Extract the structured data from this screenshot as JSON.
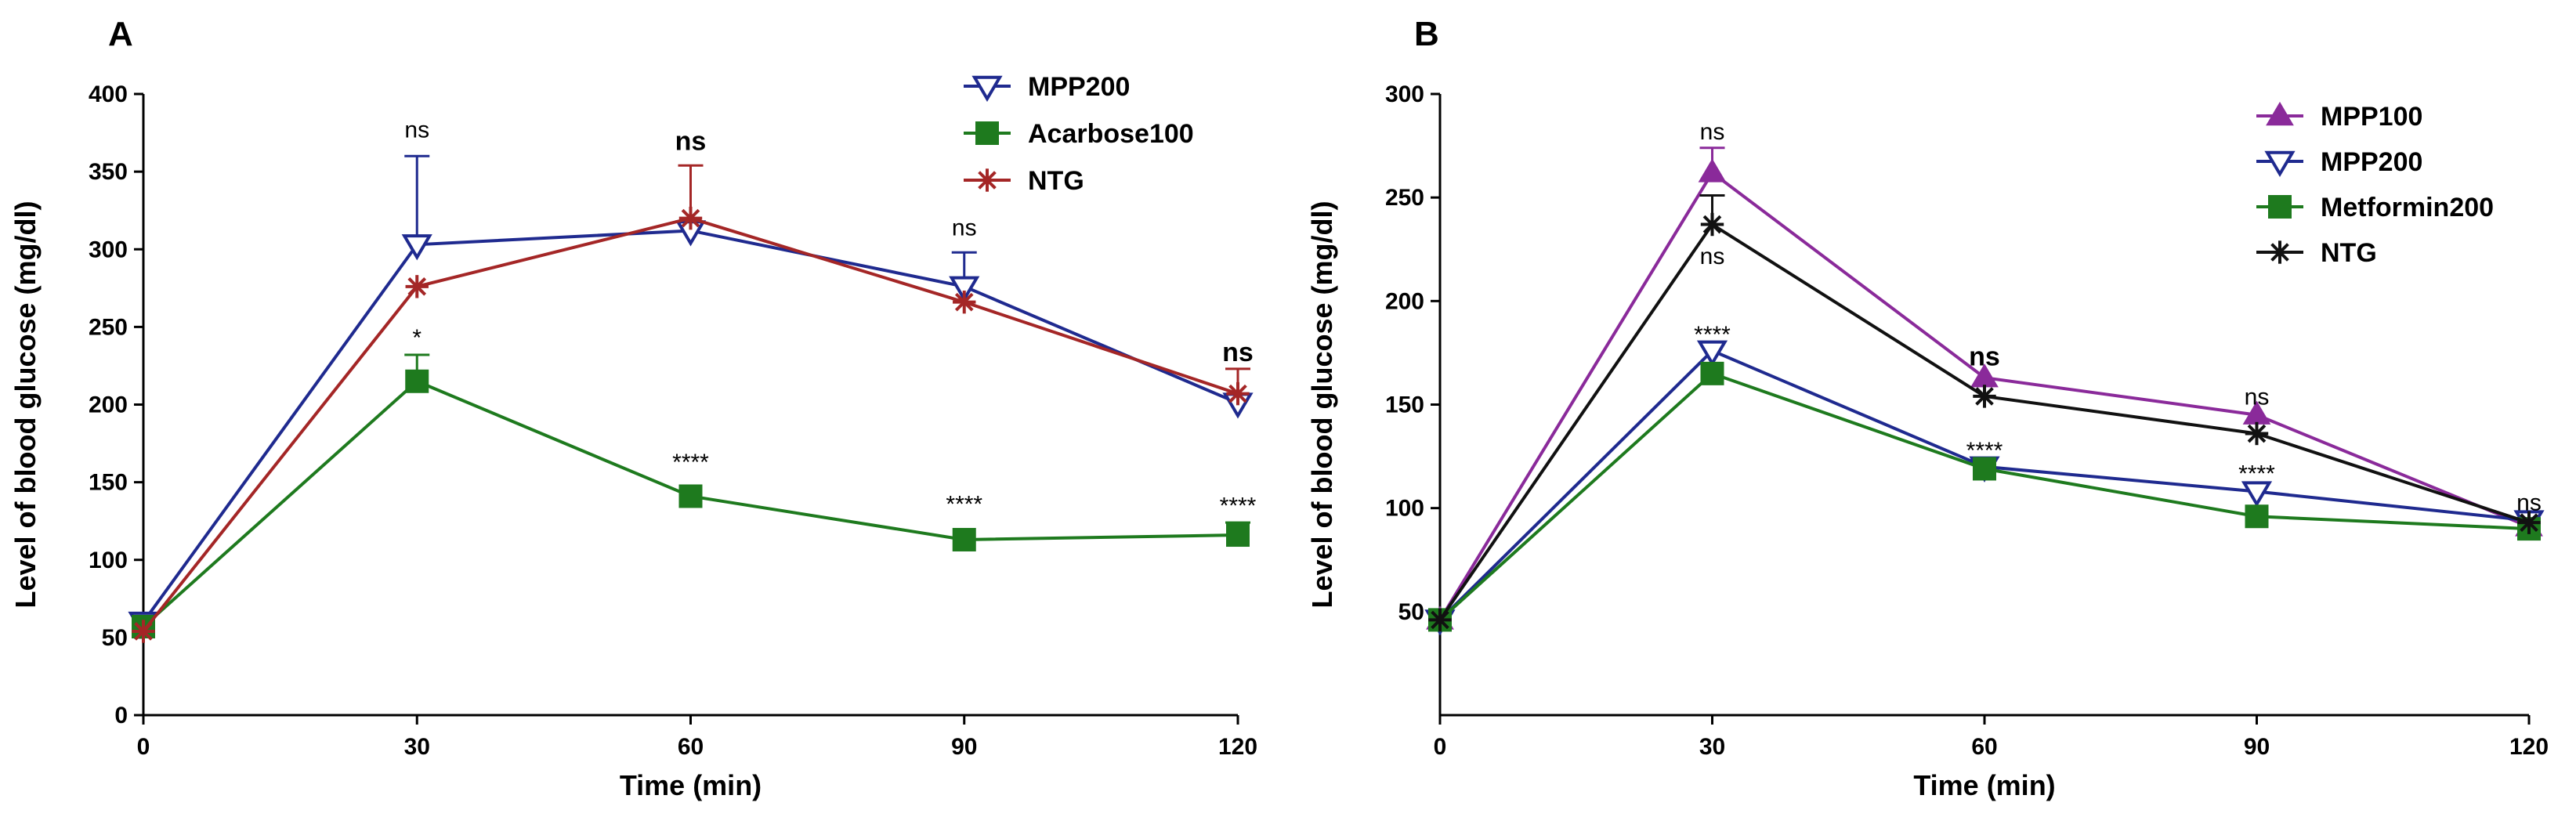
{
  "chart_data": [
    {
      "panel": "A",
      "type": "line",
      "xlabel": "Time (min)",
      "ylabel": "Level of blood glucose (mg/dl)",
      "xlim": [
        0,
        120
      ],
      "ylim": [
        0,
        400
      ],
      "xticks": [
        0,
        30,
        60,
        90,
        120
      ],
      "yticks": [
        0,
        50,
        100,
        150,
        200,
        250,
        300,
        350,
        400
      ],
      "legend_position": "top-right",
      "series": [
        {
          "name": "MPP200",
          "color": "#1f2a8f",
          "marker": "triangle-down-open",
          "x": [
            0,
            30,
            60,
            90,
            120
          ],
          "values": [
            60,
            303,
            312,
            276,
            201
          ],
          "errors": [
            0,
            57,
            0,
            22,
            0
          ]
        },
        {
          "name": "Acarbose100",
          "color": "#1e7a1e",
          "marker": "square",
          "x": [
            0,
            30,
            60,
            90,
            120
          ],
          "values": [
            57,
            215,
            141,
            113,
            116
          ],
          "errors": [
            0,
            17,
            0,
            0,
            8
          ]
        },
        {
          "name": "NTG",
          "color": "#a42626",
          "marker": "asterisk",
          "x": [
            0,
            30,
            60,
            90,
            120
          ],
          "values": [
            54,
            276,
            320,
            266,
            207
          ],
          "errors": [
            0,
            0,
            34,
            0,
            16
          ]
        }
      ],
      "annotations": [
        {
          "text": "ns",
          "x": 30,
          "y": 372,
          "style": "plain"
        },
        {
          "text": "*",
          "x": 30,
          "y": 238,
          "style": "plain"
        },
        {
          "text": "ns",
          "x": 60,
          "y": 364,
          "style": "bold"
        },
        {
          "text": "****",
          "x": 60,
          "y": 158,
          "style": "plain"
        },
        {
          "text": "ns",
          "x": 90,
          "y": 309,
          "style": "plain"
        },
        {
          "text": "****",
          "x": 90,
          "y": 131,
          "style": "plain"
        },
        {
          "text": "ns",
          "x": 120,
          "y": 228,
          "style": "bold"
        },
        {
          "text": "****",
          "x": 120,
          "y": 130,
          "style": "plain"
        }
      ]
    },
    {
      "panel": "B",
      "type": "line",
      "xlabel": "Time (min)",
      "ylabel": "Level of blood glucose (mg/dl)",
      "xlim": [
        0,
        120
      ],
      "ylim": [
        0,
        300
      ],
      "xticks": [
        0,
        30,
        60,
        90,
        120
      ],
      "yticks": [
        50,
        100,
        150,
        200,
        250,
        300
      ],
      "legend_position": "top-right",
      "series": [
        {
          "name": "MPP100",
          "color": "#8a2a9a",
          "marker": "triangle-up",
          "x": [
            0,
            30,
            60,
            90,
            120
          ],
          "values": [
            46,
            262,
            163,
            145,
            91
          ],
          "errors": [
            0,
            12,
            0,
            0,
            0
          ]
        },
        {
          "name": "MPP200",
          "color": "#1f2a8f",
          "marker": "triangle-down-open",
          "x": [
            0,
            30,
            60,
            90,
            120
          ],
          "values": [
            46,
            176,
            120,
            108,
            94
          ],
          "errors": [
            0,
            0,
            0,
            0,
            0
          ]
        },
        {
          "name": "Metformin200",
          "color": "#1e7a1e",
          "marker": "square",
          "x": [
            0,
            30,
            60,
            90,
            120
          ],
          "values": [
            46,
            165,
            119,
            96,
            90
          ],
          "errors": [
            0,
            0,
            0,
            0,
            0
          ]
        },
        {
          "name": "NTG",
          "color": "#111111",
          "marker": "asterisk",
          "x": [
            0,
            30,
            60,
            90,
            120
          ],
          "values": [
            46,
            237,
            154,
            136,
            93
          ],
          "errors": [
            0,
            14,
            0,
            0,
            0
          ]
        }
      ],
      "annotations": [
        {
          "text": "ns",
          "x": 30,
          "y": 278,
          "style": "plain"
        },
        {
          "text": "ns",
          "x": 30,
          "y": 218,
          "style": "plain"
        },
        {
          "text": "****",
          "x": 30,
          "y": 180,
          "style": "plain"
        },
        {
          "text": "ns",
          "x": 60,
          "y": 169,
          "style": "bold"
        },
        {
          "text": "****",
          "x": 60,
          "y": 124,
          "style": "plain"
        },
        {
          "text": "ns",
          "x": 90,
          "y": 150,
          "style": "plain"
        },
        {
          "text": "****",
          "x": 90,
          "y": 113,
          "style": "plain"
        },
        {
          "text": "ns",
          "x": 120,
          "y": 99,
          "style": "plain"
        }
      ]
    }
  ]
}
